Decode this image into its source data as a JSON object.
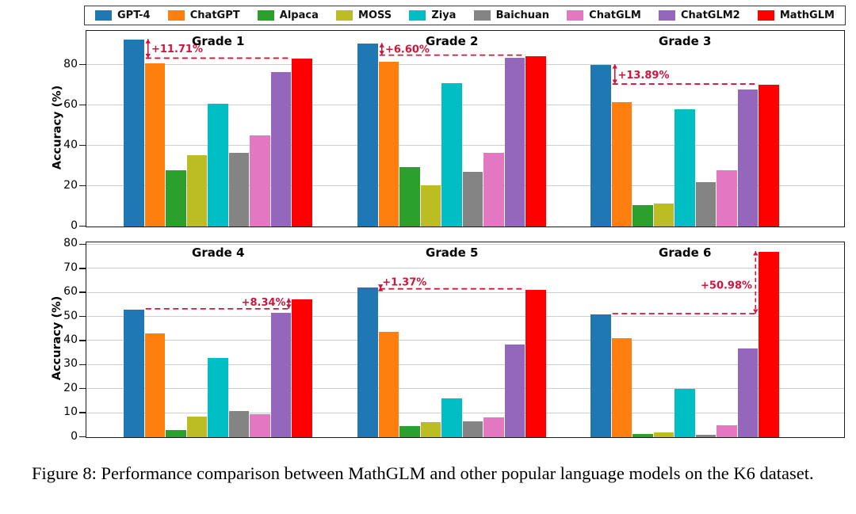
{
  "figure": {
    "caption": "Figure 8: Performance comparison between MathGLM and other popular language models on the K6 dataset."
  },
  "chart_data": {
    "type": "bar",
    "title": "",
    "xlabel": "",
    "ylabel": "Accuracy (%)",
    "grid": true,
    "legend_position": "top",
    "series": [
      "GPT-4",
      "ChatGPT",
      "Alpaca",
      "MOSS",
      "Ziya",
      "Baichuan",
      "ChatGLM",
      "ChatGLM2",
      "MathGLM"
    ],
    "colors": [
      "#1f77b4",
      "#ff7f0e",
      "#2ca02c",
      "#bcbd22",
      "#00bfc4",
      "#848484",
      "#e377c2",
      "#9467bd",
      "#ff0000"
    ],
    "annotation_color": "#d2143c",
    "rows": [
      {
        "ylim": [
          0,
          96.5
        ],
        "yticks": [
          0,
          20,
          40,
          60,
          80
        ],
        "panels": [
          {
            "title": "Grade 1",
            "values": [
              92.5,
              81,
              28,
              35.5,
              61,
              36.5,
              45,
              76.5,
              83
            ],
            "annotation": {
              "text": "+11.71%",
              "hline_y": 83,
              "hline_x1": 1.05,
              "hline_x2": 8,
              "arrow_x": 1.16,
              "arrow_y1": 92.5,
              "arrow_y2": 83,
              "arrow_dashed": false,
              "text_x": 1.32,
              "text_y": 87.6,
              "anchor": "start"
            }
          },
          {
            "title": "Grade 2",
            "values": [
              90.5,
              81.5,
              29.5,
              20.5,
              71,
              27,
              36.5,
              83.5,
              84.5
            ],
            "annotation": {
              "text": "+6.60%",
              "hline_y": 84.5,
              "hline_x1": 1.05,
              "hline_x2": 8,
              "arrow_x": 1.16,
              "arrow_y1": 90.5,
              "arrow_y2": 84.5,
              "arrow_dashed": false,
              "text_x": 1.32,
              "text_y": 87.4,
              "anchor": "start"
            }
          },
          {
            "title": "Grade 3",
            "values": [
              80,
              61.5,
              10.5,
              11.5,
              58,
              22,
              28,
              68,
              70.2
            ],
            "annotation": {
              "text": "+13.89%",
              "hline_y": 70.2,
              "hline_x1": 1.05,
              "hline_x2": 8,
              "arrow_x": 1.16,
              "arrow_y1": 80,
              "arrow_y2": 70.2,
              "arrow_dashed": false,
              "text_x": 1.3,
              "text_y": 74.8,
              "anchor": "start"
            }
          }
        ]
      },
      {
        "ylim": [
          0,
          80.6
        ],
        "yticks": [
          0,
          10,
          20,
          30,
          40,
          50,
          60,
          70,
          80
        ],
        "panels": [
          {
            "title": "Grade 4",
            "values": [
              53,
              43.2,
              3,
              8.7,
              33,
              10.7,
              9.7,
              51.7,
              57.4
            ],
            "annotation": {
              "text": "+8.34%",
              "hline_y": 53,
              "hline_x1": 1.05,
              "hline_x2": 7.95,
              "arrow_x": 7.86,
              "arrow_y1": 57.4,
              "arrow_y2": 53,
              "arrow_dashed": false,
              "text_x": 7.72,
              "text_y": 55.7,
              "anchor": "end"
            }
          },
          {
            "title": "Grade 5",
            "values": [
              62.1,
              43.8,
              4.6,
              6.2,
              16,
              6.6,
              8.3,
              38.5,
              61.3
            ],
            "annotation": {
              "text": "+1.37%",
              "hline_y": 61.3,
              "hline_x1": 1.05,
              "hline_x2": 8,
              "arrow_x": 1.1,
              "arrow_y1": 62.1,
              "arrow_y2": 61.3,
              "arrow_dashed": false,
              "text_x": 1.18,
              "text_y": 64.1,
              "anchor": "start"
            }
          },
          {
            "title": "Grade 6",
            "values": [
              51,
              41,
              1.2,
              2,
              20,
              1,
              4.9,
              37,
              77
            ],
            "annotation": {
              "text": "+50.98%",
              "hline_y": 51,
              "hline_x1": 1.05,
              "hline_x2": 7.86,
              "arrow_x": 7.86,
              "arrow_y1": 77,
              "arrow_y2": 51,
              "arrow_dashed": true,
              "text_x": 7.7,
              "text_y": 62.8,
              "anchor": "end"
            }
          }
        ]
      }
    ]
  }
}
